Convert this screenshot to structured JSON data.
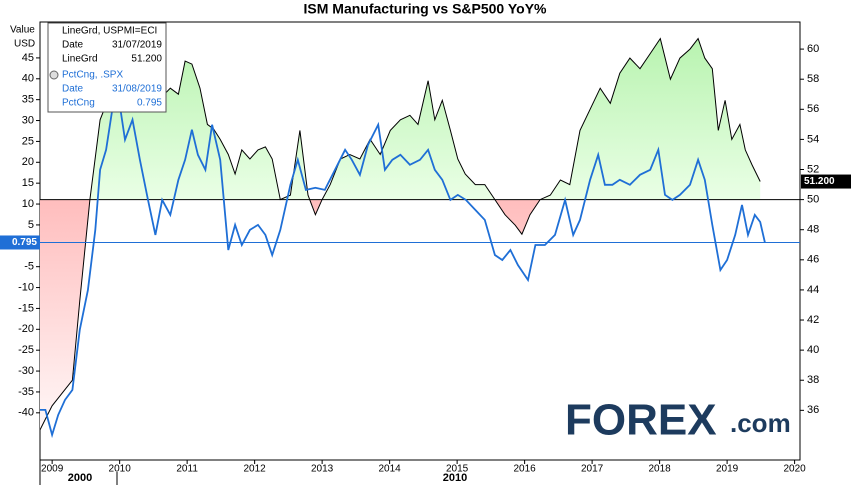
{
  "chart_data": {
    "type": "line",
    "title": "ISM Manufacturing vs S&P500 YoY%",
    "y_label": [
      "Value",
      "USD"
    ],
    "xlim": [
      2008.82,
      2020.08
    ],
    "xticks": [
      2009,
      2010,
      2011,
      2012,
      2013,
      2014,
      2015,
      2016,
      2017,
      2018,
      2019,
      2020
    ],
    "era_labels": [
      "2000",
      "2010"
    ],
    "ylim": [
      -51.3,
      53.6
    ],
    "yticks": [
      -40,
      -35,
      -30,
      -25,
      -20,
      -15,
      -10,
      -5,
      0,
      5,
      10,
      15,
      20,
      25,
      30,
      35,
      40,
      45
    ],
    "y2lim": [
      32.7,
      61.8
    ],
    "y2ticks": [
      36,
      38,
      40,
      42,
      44,
      46,
      48,
      50,
      52,
      54,
      56,
      58,
      60
    ],
    "threshold": 50,
    "fill_above": "#b3f2aa",
    "fill_below": "#ffbdbd",
    "series": [
      {
        "name": "LineGrd, USPMI=ECI",
        "color": "#000000",
        "axis": "y2",
        "last_label": "51.200",
        "x": [
          2008.82,
          2009.0,
          2009.3,
          2009.41,
          2009.56,
          2009.71,
          2009.86,
          2009.96,
          2010.08,
          2010.23,
          2010.38,
          2010.6,
          2010.75,
          2010.87,
          2010.97,
          2011.07,
          2011.19,
          2011.3,
          2011.39,
          2011.49,
          2011.61,
          2011.71,
          2011.81,
          2011.93,
          2012.05,
          2012.16,
          2012.26,
          2012.38,
          2012.53,
          2012.67,
          2012.79,
          2012.9,
          2013.0,
          2013.12,
          2013.27,
          2013.41,
          2013.56,
          2013.71,
          2013.86,
          2014.01,
          2014.16,
          2014.3,
          2014.42,
          2014.57,
          2014.67,
          2014.78,
          2014.9,
          2015.01,
          2015.12,
          2015.27,
          2015.41,
          2015.56,
          2015.71,
          2015.86,
          2015.96,
          2016.08,
          2016.23,
          2016.38,
          2016.53,
          2016.67,
          2016.82,
          2016.97,
          2017.12,
          2017.27,
          2017.41,
          2017.56,
          2017.71,
          2017.86,
          2018.01,
          2018.16,
          2018.3,
          2018.45,
          2018.57,
          2018.67,
          2018.78,
          2018.87,
          2018.97,
          2019.07,
          2019.19,
          2019.27,
          2019.37,
          2019.49
        ],
        "values": [
          34.7,
          36.3,
          38.0,
          43.3,
          50.0,
          55.3,
          57.0,
          58.0,
          60.0,
          56.7,
          56.0,
          56.7,
          57.4,
          57.0,
          59.2,
          59.0,
          57.4,
          55.0,
          54.7,
          54.0,
          53.0,
          51.7,
          53.3,
          52.7,
          53.3,
          53.5,
          52.7,
          50.0,
          50.3,
          54.6,
          50.3,
          49.0,
          50.0,
          51.0,
          52.7,
          53.0,
          52.7,
          54.0,
          53.0,
          54.6,
          55.3,
          55.6,
          55.0,
          57.9,
          55.3,
          56.6,
          54.6,
          52.7,
          51.7,
          51.0,
          51.0,
          50.0,
          49.0,
          48.3,
          47.7,
          49.0,
          50.0,
          50.3,
          51.3,
          51.0,
          54.6,
          56.0,
          57.4,
          56.4,
          58.4,
          59.4,
          58.7,
          59.7,
          60.7,
          58.0,
          59.4,
          60.0,
          60.7,
          59.4,
          58.7,
          54.6,
          56.6,
          54.0,
          55.0,
          53.3,
          52.3,
          51.2
        ]
      },
      {
        "name": "PctCng, .SPX",
        "color": "#1f6fd6",
        "last_label": "0.795",
        "x": [
          2008.82,
          2008.9,
          2009.0,
          2009.09,
          2009.19,
          2009.3,
          2009.41,
          2009.53,
          2009.64,
          2009.71,
          2009.8,
          2009.89,
          2009.98,
          2010.08,
          2010.19,
          2010.3,
          2010.42,
          2010.53,
          2010.63,
          2010.75,
          2010.87,
          2010.97,
          2011.07,
          2011.16,
          2011.27,
          2011.37,
          2011.49,
          2011.61,
          2011.71,
          2011.81,
          2011.93,
          2012.05,
          2012.16,
          2012.26,
          2012.38,
          2012.53,
          2012.64,
          2012.76,
          2012.9,
          2013.04,
          2013.19,
          2013.34,
          2013.44,
          2013.56,
          2013.68,
          2013.83,
          2013.93,
          2014.04,
          2014.16,
          2014.3,
          2014.45,
          2014.57,
          2014.67,
          2014.78,
          2014.9,
          2015.01,
          2015.13,
          2015.27,
          2015.41,
          2015.56,
          2015.67,
          2015.79,
          2015.9,
          2016.05,
          2016.16,
          2016.3,
          2016.45,
          2016.6,
          2016.72,
          2016.82,
          2016.97,
          2017.09,
          2017.19,
          2017.3,
          2017.41,
          2017.56,
          2017.71,
          2017.86,
          2017.98,
          2018.08,
          2018.19,
          2018.3,
          2018.45,
          2018.57,
          2018.67,
          2018.78,
          2018.9,
          2019.0,
          2019.12,
          2019.22,
          2019.31,
          2019.41,
          2019.49,
          2019.56
        ],
        "values": [
          -39.3,
          -39.3,
          -45.3,
          -40.5,
          -36.9,
          -34.5,
          -20.1,
          -10.6,
          3.8,
          18.2,
          23.0,
          32.5,
          36.1,
          25.4,
          30.2,
          20.6,
          11.0,
          2.6,
          11.0,
          7.4,
          15.8,
          20.6,
          27.8,
          21.8,
          18.2,
          29.0,
          20.6,
          -1.0,
          5.0,
          0.2,
          3.8,
          5.0,
          2.6,
          -2.2,
          3.8,
          14.6,
          20.6,
          13.4,
          13.9,
          13.4,
          18.2,
          23.0,
          20.6,
          17.0,
          24.2,
          29.0,
          18.2,
          20.6,
          21.8,
          19.4,
          20.6,
          23.0,
          18.2,
          15.8,
          11.0,
          12.2,
          11.0,
          8.6,
          6.2,
          -2.2,
          -3.4,
          -1.0,
          -4.6,
          -8.2,
          0.2,
          0.2,
          2.6,
          11.0,
          2.6,
          6.2,
          15.8,
          21.8,
          14.6,
          14.6,
          15.8,
          14.6,
          17.0,
          18.2,
          23.0,
          12.2,
          11.0,
          12.2,
          14.6,
          20.6,
          15.8,
          5.0,
          -5.8,
          -3.4,
          2.6,
          9.8,
          2.6,
          7.4,
          5.7,
          0.795
        ]
      }
    ],
    "tooltip": [
      {
        "title": "LineGrd, USPMI=ECI",
        "rows": [
          [
            "Date",
            "31/07/2019"
          ],
          [
            "LineGrd",
            "51.200"
          ]
        ]
      },
      {
        "title": "PctCng, .SPX",
        "rows": [
          [
            "Date",
            "31/08/2019"
          ],
          [
            "PctCng",
            "0.795"
          ]
        ]
      }
    ],
    "logo": {
      "main": "FOREX",
      "suffix": ".com"
    }
  }
}
